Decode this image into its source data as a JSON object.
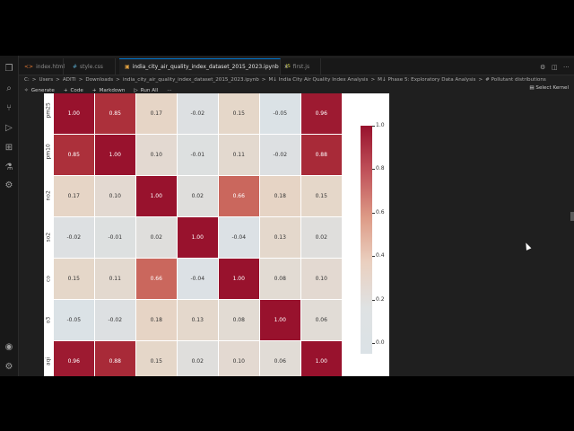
{
  "tabs": [
    {
      "label": "index.html",
      "icon": "<>",
      "active": false
    },
    {
      "label": "style.css",
      "icon": "#",
      "active": false
    },
    {
      "label": "india_city_air_quality_index_dataset_2015_2023.ipynb",
      "icon": "▣",
      "active": true,
      "close": "✕"
    },
    {
      "label": "first.js",
      "icon": "JS",
      "active": false
    }
  ],
  "breadcrumb": [
    "C:",
    ">",
    "Users",
    ">",
    "ADITI",
    ">",
    "Downloads",
    ">",
    "india_city_air_quality_index_dataset_2015_2023.ipynb",
    ">",
    "M↓ India City Air Quality Index Analysis",
    ">",
    "M↓ Phase 5: Exploratory Data Analysis",
    ">",
    "# Pollutant distributions"
  ],
  "toolbar": {
    "generate": "Generate",
    "code": "Code",
    "markdown": "Markdown",
    "run_all": "Run All",
    "more": "···"
  },
  "kernel": "Select Kernel",
  "chart_data": {
    "type": "heatmap",
    "labels": [
      "pm25",
      "pm10",
      "no2",
      "so2",
      "co",
      "o3",
      "aqi"
    ],
    "values": [
      [
        "1.00",
        "0.85",
        "0.17",
        "-0.02",
        "0.15",
        "-0.05",
        "0.96"
      ],
      [
        "0.85",
        "1.00",
        "0.10",
        "-0.01",
        "0.11",
        "-0.02",
        "0.88"
      ],
      [
        "0.17",
        "0.10",
        "1.00",
        "0.02",
        "0.66",
        "0.18",
        "0.15"
      ],
      [
        "-0.02",
        "-0.01",
        "0.02",
        "1.00",
        "-0.04",
        "0.13",
        "0.02"
      ],
      [
        "0.15",
        "0.11",
        "0.66",
        "-0.04",
        "1.00",
        "0.08",
        "0.10"
      ],
      [
        "-0.05",
        "-0.02",
        "0.18",
        "0.13",
        "0.08",
        "1.00",
        "0.06"
      ],
      [
        "0.96",
        "0.88",
        "0.15",
        "0.02",
        "0.10",
        "0.06",
        "1.00"
      ]
    ],
    "colorbar_ticks": [
      "1.0",
      "0.8",
      "0.6",
      "0.4",
      "0.2",
      "0.0"
    ],
    "colorbar_range": [
      -0.05,
      1.0
    ],
    "cmap": "coolwarm-style (light grey-blue to dark red)"
  }
}
